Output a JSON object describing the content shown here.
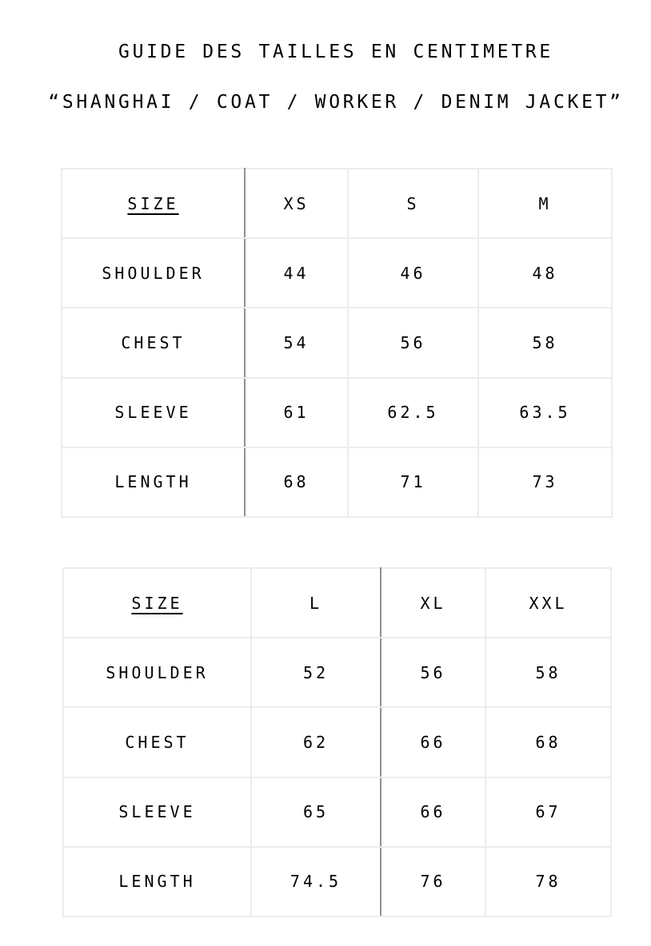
{
  "page": {
    "title": "GUIDE DES TAILLES EN CENTIMETRE",
    "subtitle": "“SHANGHAI / COAT / WORKER / DENIM JACKET”"
  },
  "colors": {
    "text": "#000000",
    "grid_light": "#ececec",
    "grid_dark": "#909090",
    "background": "#ffffff"
  },
  "tables": [
    {
      "header": [
        "SIZE",
        "XS",
        "S",
        "M"
      ],
      "rows": [
        {
          "label": "SHOULDER",
          "values": [
            "44",
            "46",
            "48"
          ]
        },
        {
          "label": "CHEST",
          "values": [
            "54",
            "56",
            "58"
          ]
        },
        {
          "label": "SLEEVE",
          "values": [
            "61",
            "62.5",
            "63.5"
          ]
        },
        {
          "label": "LENGTH",
          "values": [
            "68",
            "71",
            "73"
          ]
        }
      ]
    },
    {
      "header": [
        "SIZE",
        "L",
        "XL",
        "XXL"
      ],
      "rows": [
        {
          "label": "SHOULDER",
          "values": [
            "52",
            "56",
            "58"
          ]
        },
        {
          "label": "CHEST",
          "values": [
            "62",
            "66",
            "68"
          ]
        },
        {
          "label": "SLEEVE",
          "values": [
            "65",
            "66",
            "67"
          ]
        },
        {
          "label": "LENGTH",
          "values": [
            "74.5",
            "76",
            "78"
          ]
        }
      ]
    }
  ]
}
